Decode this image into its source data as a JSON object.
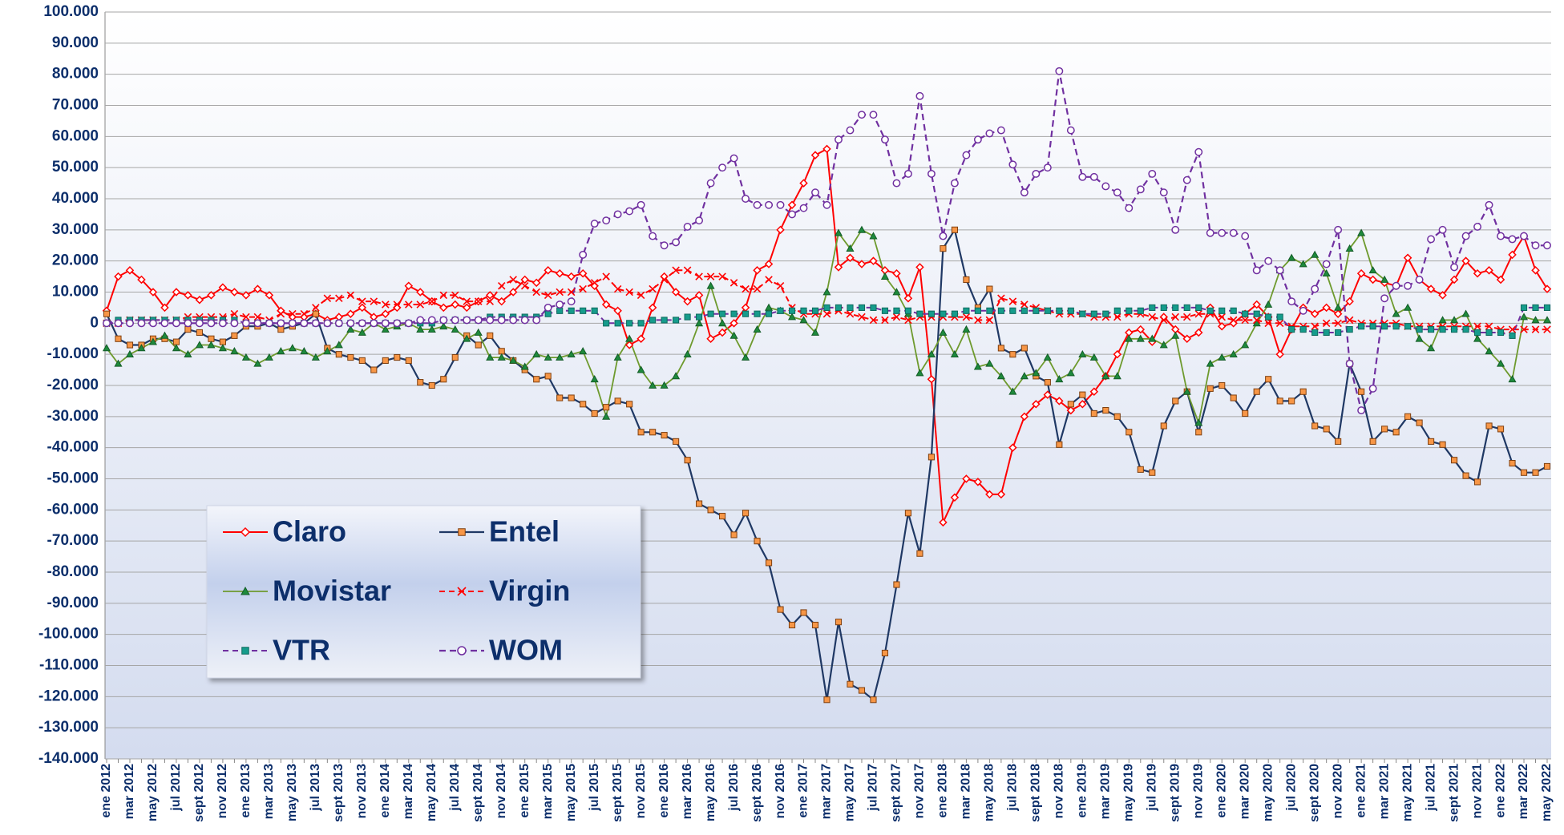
{
  "chart_data": {
    "type": "line",
    "categories": [
      "ene 2012",
      null,
      "mar 2012",
      null,
      "may 2012",
      null,
      "jul 2012",
      null,
      "sept 2012",
      null,
      "nov 2012",
      null,
      "ene 2013",
      null,
      "mar 2013",
      null,
      "may 2013",
      null,
      "jul 2013",
      null,
      "sept 2013",
      null,
      "nov 2013",
      null,
      "ene 2014",
      null,
      "mar 2014",
      null,
      "may 2014",
      null,
      "jul 2014",
      null,
      "sept 2014",
      null,
      "nov 2014",
      null,
      "ene 2015",
      null,
      "mar 2015",
      null,
      "may 2015",
      null,
      "jul 2015",
      null,
      "sept 2015",
      null,
      "nov 2015",
      null,
      "ene 2016",
      null,
      "mar 2016",
      null,
      "may 2016",
      null,
      "jul 2016",
      null,
      "sept 2016",
      null,
      "nov 2016",
      null,
      "ene 2017",
      null,
      "mar 2017",
      null,
      "may 2017",
      null,
      "jul 2017",
      null,
      "sept 2017",
      null,
      "nov 2017",
      null,
      "ene 2018",
      null,
      "mar 2018",
      null,
      "may 2018",
      null,
      "jul 2018",
      null,
      "sept 2018",
      null,
      "nov 2018",
      null,
      "ene 2019",
      null,
      "mar 2019",
      null,
      "may 2019",
      null,
      "jul 2019",
      null,
      "sept 2019",
      null,
      "nov 2019",
      null,
      "ene 2020",
      null,
      "mar 2020",
      null,
      "may 2020",
      null,
      "jul 2020",
      null,
      "sept 2020",
      null,
      "nov 2020",
      null,
      "ene 2021",
      null,
      "mar 2021",
      null,
      "may 2021",
      null,
      "jul 2021",
      null,
      "sept 2021",
      null,
      "nov 2021",
      null,
      "ene 2022",
      null,
      "mar 2022",
      null,
      "may 2022"
    ],
    "series": [
      {
        "name": "Claro",
        "color": "#ff0000",
        "values": [
          4000,
          15000,
          17000,
          14000,
          10000,
          5000,
          10000,
          9000,
          7500,
          9000,
          11500,
          10000,
          9000,
          11000,
          9000,
          4000,
          2000,
          2000,
          3000,
          1000,
          2000,
          3000,
          5000,
          2000,
          3000,
          5000,
          12000,
          10000,
          7000,
          5000,
          6000,
          5000,
          7000,
          9000,
          7000,
          10000,
          14000,
          13000,
          17000,
          16000,
          15000,
          16000,
          12000,
          6000,
          4000,
          -7000,
          -5000,
          5000,
          15000,
          10000,
          7000,
          9000,
          -5000,
          -3000,
          0,
          5000,
          17000,
          19000,
          30000,
          38000,
          45000,
          54000,
          56000,
          18000,
          21000,
          19000,
          20000,
          17000,
          16000,
          8000,
          18000,
          -18000,
          -64000,
          -56000,
          -50000,
          -51000,
          -55000,
          -55000,
          -40000,
          -30000,
          -26000,
          -23000,
          -25000,
          -28000,
          -26000,
          -22000,
          -17000,
          -10000,
          -3000,
          -2000,
          -6000,
          2000,
          -2000,
          -5000,
          -3000,
          5000,
          -1000,
          0,
          3000,
          6000,
          2000,
          -10000,
          -2000,
          5000,
          3000,
          5000,
          3000,
          7000,
          16000,
          14000,
          13000,
          12000,
          21000,
          14000,
          11000,
          9000,
          14000,
          20000,
          16000,
          17000,
          14000,
          22000,
          28000,
          17000,
          11000
        ]
      },
      {
        "name": "Entel",
        "color": "#1f3864",
        "values": [
          3000,
          -5000,
          -7000,
          -7000,
          -5000,
          -5000,
          -6000,
          -2000,
          -3000,
          -5000,
          -6000,
          -4000,
          -1000,
          -1000,
          0,
          -2000,
          -1000,
          0,
          3000,
          -8000,
          -10000,
          -11000,
          -12000,
          -15000,
          -12000,
          -11000,
          -12000,
          -19000,
          -20000,
          -18000,
          -11000,
          -4000,
          -7000,
          -4000,
          -9000,
          -12000,
          -15000,
          -18000,
          -17000,
          -24000,
          -24000,
          -26000,
          -29000,
          -27000,
          -25000,
          -26000,
          -35000,
          -35000,
          -36000,
          -38000,
          -44000,
          -58000,
          -60000,
          -62000,
          -68000,
          -61000,
          -70000,
          -77000,
          -92000,
          -97000,
          -93000,
          -97000,
          -121000,
          -96000,
          -116000,
          -118000,
          -121000,
          -106000,
          -84000,
          -61000,
          -74000,
          -43000,
          24000,
          30000,
          14000,
          5000,
          11000,
          -8000,
          -10000,
          -8000,
          -17000,
          -19000,
          -39000,
          -26000,
          -23000,
          -29000,
          -28000,
          -30000,
          -35000,
          -47000,
          -48000,
          -33000,
          -25000,
          -22000,
          -35000,
          -21000,
          -20000,
          -24000,
          -29000,
          -22000,
          -18000,
          -25000,
          -25000,
          -22000,
          -33000,
          -34000,
          -38000,
          -13000,
          -22000,
          -38000,
          -34000,
          -35000,
          -30000,
          -32000,
          -38000,
          -39000,
          -44000,
          -49000,
          -51000,
          -33000,
          -34000,
          -45000,
          -48000,
          -48000,
          -46000
        ]
      },
      {
        "name": "Movistar",
        "color": "#6e9a2e",
        "values": [
          -8000,
          -13000,
          -10000,
          -8000,
          -6000,
          -4000,
          -8000,
          -10000,
          -7000,
          -7000,
          -8000,
          -9000,
          -11000,
          -13000,
          -11000,
          -9000,
          -8000,
          -9000,
          -11000,
          -9000,
          -7000,
          -2000,
          -3000,
          0,
          -2000,
          -1000,
          0,
          -2000,
          -2000,
          -1000,
          -2000,
          -5000,
          -3000,
          -11000,
          -11000,
          -12000,
          -14000,
          -10000,
          -11000,
          -11000,
          -10000,
          -9000,
          -18000,
          -30000,
          -11000,
          -5000,
          -15000,
          -20000,
          -20000,
          -17000,
          -10000,
          0,
          12000,
          0,
          -4000,
          -11000,
          -2000,
          5000,
          4000,
          2000,
          1000,
          -3000,
          10000,
          29000,
          24000,
          30000,
          28000,
          15000,
          10000,
          3000,
          -16000,
          -10000,
          -3000,
          -10000,
          -2000,
          -14000,
          -13000,
          -17000,
          -22000,
          -17000,
          -16000,
          -11000,
          -18000,
          -16000,
          -10000,
          -11000,
          -17000,
          -17000,
          -5000,
          -5000,
          -5000,
          -7000,
          -4000,
          -22000,
          -32000,
          -13000,
          -11000,
          -10000,
          -7000,
          0,
          6000,
          17000,
          21000,
          19000,
          22000,
          16000,
          5000,
          24000,
          29000,
          17000,
          14000,
          3000,
          5000,
          -5000,
          -8000,
          1000,
          1000,
          3000,
          -5000,
          -9000,
          -13000,
          -18000,
          2000,
          1000,
          1000
        ]
      },
      {
        "name": "Virgin",
        "color": "#ff0000",
        "values": [
          0,
          0,
          1000,
          1000,
          1000,
          1000,
          1000,
          2000,
          2000,
          2000,
          2000,
          3000,
          2000,
          2000,
          1000,
          3000,
          3000,
          3000,
          5000,
          8000,
          8000,
          9000,
          7000,
          7000,
          6000,
          6000,
          6000,
          6000,
          7000,
          9000,
          9000,
          7000,
          7000,
          7000,
          12000,
          14000,
          12000,
          10000,
          9000,
          10000,
          10000,
          11000,
          13000,
          15000,
          11000,
          10000,
          9000,
          11000,
          14000,
          17000,
          17000,
          15000,
          15000,
          15000,
          13000,
          11000,
          11000,
          14000,
          12000,
          5000,
          3000,
          3000,
          3000,
          4000,
          3000,
          2000,
          1000,
          1000,
          2000,
          1000,
          2000,
          2000,
          2000,
          2000,
          2000,
          1000,
          1000,
          8000,
          7000,
          6000,
          5000,
          4000,
          3000,
          3000,
          3000,
          2000,
          2000,
          2000,
          3000,
          3000,
          2000,
          1000,
          2000,
          2000,
          3000,
          3000,
          2000,
          1000,
          1000,
          1000,
          0,
          0,
          -1000,
          -1000,
          -1000,
          0,
          0,
          1000,
          0,
          0,
          0,
          0,
          -1000,
          -1000,
          -1000,
          -1000,
          -1000,
          -1000,
          -1000,
          -1000,
          -2000,
          -2000,
          -2000,
          -2000,
          -2000
        ]
      },
      {
        "name": "VTR",
        "color": "#7030a0",
        "values": [
          0,
          1000,
          1000,
          1000,
          1000,
          1000,
          1000,
          1000,
          1000,
          1000,
          1000,
          1000,
          0,
          0,
          0,
          0,
          0,
          0,
          0,
          0,
          0,
          0,
          0,
          0,
          0,
          0,
          0,
          0,
          0,
          1000,
          1000,
          1000,
          1000,
          2000,
          2000,
          2000,
          2000,
          2000,
          3000,
          4000,
          4000,
          4000,
          4000,
          0,
          0,
          0,
          0,
          1000,
          1000,
          1000,
          2000,
          2000,
          3000,
          3000,
          3000,
          3000,
          3000,
          3000,
          4000,
          4000,
          4000,
          4000,
          5000,
          5000,
          5000,
          5000,
          5000,
          4000,
          4000,
          4000,
          3000,
          3000,
          3000,
          3000,
          4000,
          4000,
          4000,
          4000,
          4000,
          4000,
          4000,
          4000,
          4000,
          4000,
          3000,
          3000,
          3000,
          4000,
          4000,
          4000,
          5000,
          5000,
          5000,
          5000,
          5000,
          4000,
          4000,
          4000,
          3000,
          3000,
          2000,
          2000,
          -2000,
          -2000,
          -3000,
          -3000,
          -3000,
          -2000,
          -1000,
          -1000,
          -1000,
          -1000,
          -1000,
          -2000,
          -2000,
          -2000,
          -2000,
          -2000,
          -3000,
          -3000,
          -3000,
          -4000,
          5000,
          5000,
          5000
        ]
      },
      {
        "name": "WOM",
        "color": "#7030a0",
        "values": [
          0,
          0,
          0,
          0,
          0,
          0,
          0,
          0,
          0,
          0,
          0,
          0,
          0,
          0,
          0,
          0,
          0,
          0,
          0,
          0,
          0,
          0,
          0,
          0,
          0,
          0,
          0,
          1000,
          1000,
          1000,
          1000,
          1000,
          1000,
          1000,
          1000,
          1000,
          1000,
          1000,
          5000,
          6000,
          7000,
          22000,
          32000,
          33000,
          35000,
          36000,
          38000,
          28000,
          25000,
          26000,
          31000,
          33000,
          45000,
          50000,
          53000,
          40000,
          38000,
          38000,
          38000,
          35000,
          37000,
          42000,
          38000,
          59000,
          62000,
          67000,
          67000,
          59000,
          45000,
          48000,
          73000,
          48000,
          28000,
          45000,
          54000,
          59000,
          61000,
          62000,
          51000,
          42000,
          48000,
          50000,
          81000,
          62000,
          47000,
          47000,
          44000,
          42000,
          37000,
          43000,
          48000,
          42000,
          30000,
          46000,
          55000,
          29000,
          29000,
          29000,
          28000,
          17000,
          20000,
          17000,
          7000,
          4000,
          11000,
          19000,
          30000,
          -13000,
          -28000,
          -21000,
          8000,
          12000,
          12000,
          14000,
          27000,
          30000,
          18000,
          28000,
          31000,
          38000,
          28000,
          27000,
          28000,
          25000,
          25000
        ]
      }
    ],
    "ylim": [
      -140000,
      100000
    ],
    "yticks": [
      {
        "value": -140000,
        "label": "-140.000"
      },
      {
        "value": -130000,
        "label": "-130.000"
      },
      {
        "value": -120000,
        "label": "-120.000"
      },
      {
        "value": -110000,
        "label": "-110.000"
      },
      {
        "value": -100000,
        "label": "-100.000"
      },
      {
        "value": -90000,
        "label": "-90.000"
      },
      {
        "value": -80000,
        "label": "-80.000"
      },
      {
        "value": -70000,
        "label": "-70.000"
      },
      {
        "value": -60000,
        "label": "-60.000"
      },
      {
        "value": -50000,
        "label": "-50.000"
      },
      {
        "value": -40000,
        "label": "-40.000"
      },
      {
        "value": -30000,
        "label": "-30.000"
      },
      {
        "value": -20000,
        "label": "-20.000"
      },
      {
        "value": -10000,
        "label": "-10.000"
      },
      0,
      {
        "value": 10000,
        "label": "10.000"
      },
      {
        "value": 20000,
        "label": "20.000"
      },
      {
        "value": 30000,
        "label": "30.000"
      },
      {
        "value": 40000,
        "label": "40.000"
      },
      {
        "value": 50000,
        "label": "50.000"
      },
      {
        "value": 60000,
        "label": "60.000"
      },
      {
        "value": 70000,
        "label": "70.000"
      },
      {
        "value": 80000,
        "label": "80.000"
      },
      {
        "value": 90000,
        "label": "90.000"
      },
      {
        "value": 100000,
        "label": "100.000"
      }
    ],
    "grid": true
  }
}
